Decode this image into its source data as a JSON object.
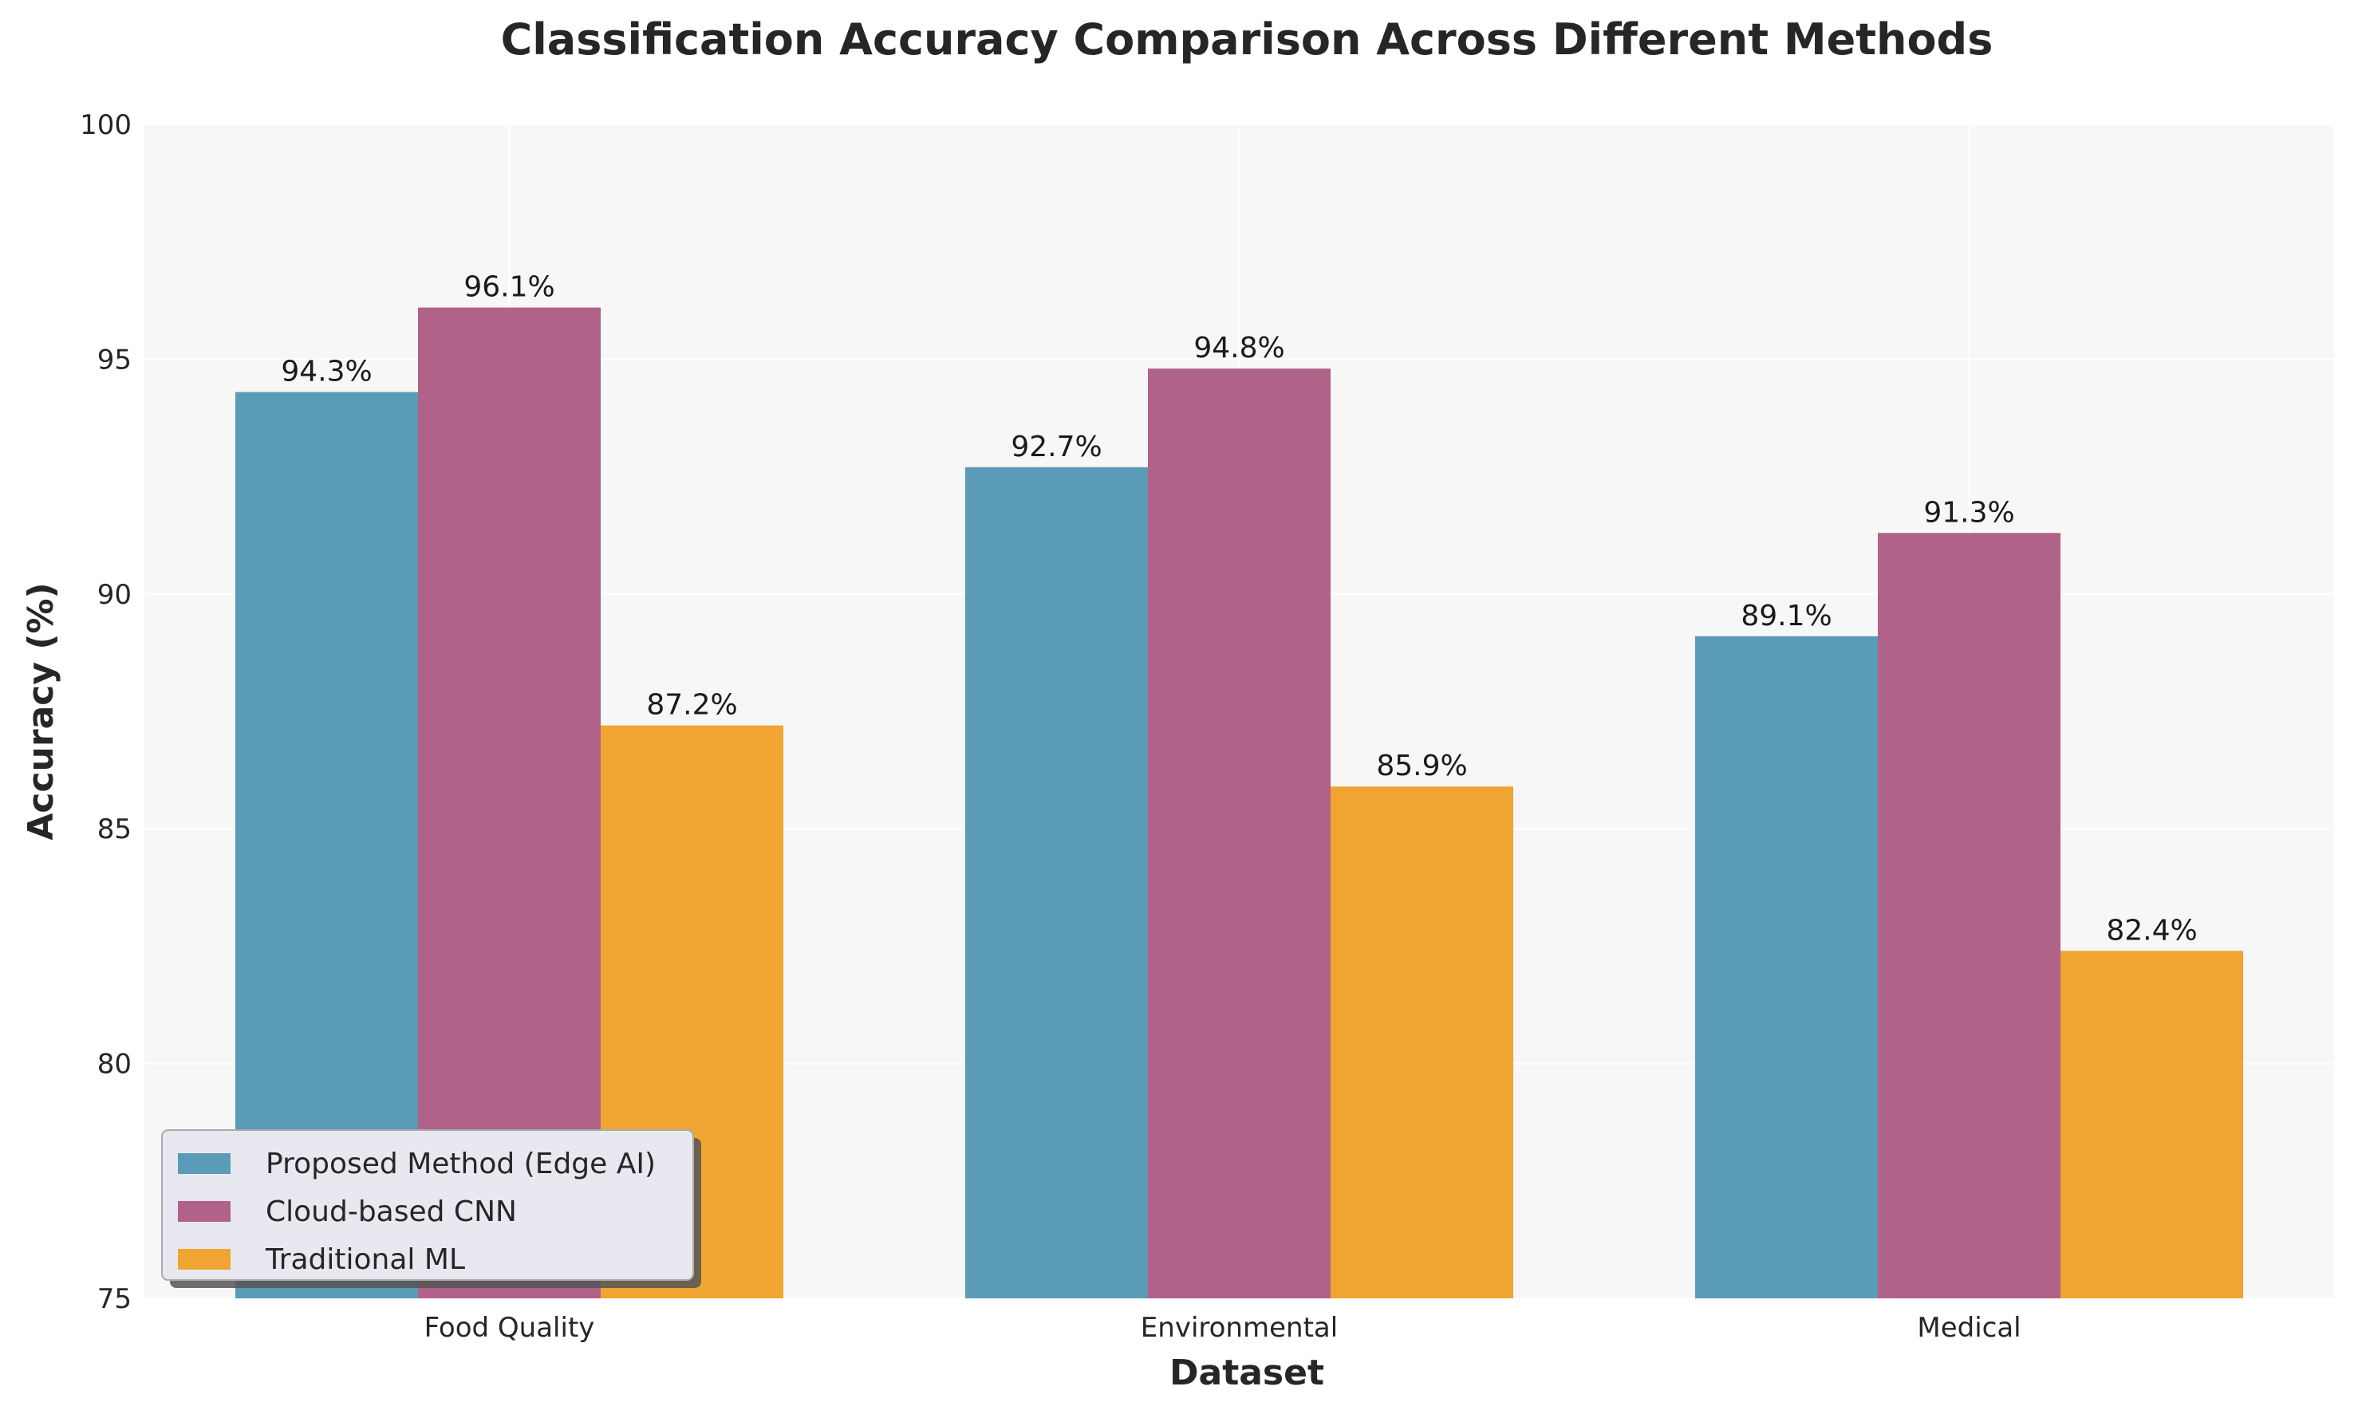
{
  "chart_data": {
    "type": "bar",
    "title": "Classification Accuracy Comparison Across Different Methods",
    "xlabel": "Dataset",
    "ylabel": "Accuracy (%)",
    "categories": [
      "Food Quality",
      "Environmental",
      "Medical"
    ],
    "series": [
      {
        "name": "Proposed Method (Edge AI)",
        "color": "#5a9bb8",
        "values": [
          94.3,
          92.7,
          89.1
        ]
      },
      {
        "name": "Cloud-based CNN",
        "color": "#b06289",
        "values": [
          96.1,
          94.8,
          91.3
        ]
      },
      {
        "name": "Traditional ML",
        "color": "#f0a432",
        "values": [
          87.2,
          85.9,
          82.4
        ]
      }
    ],
    "data_labels": [
      [
        "94.3%",
        "92.7%",
        "89.1%"
      ],
      [
        "96.1%",
        "94.8%",
        "91.3%"
      ],
      [
        "87.2%",
        "85.9%",
        "82.4%"
      ]
    ],
    "ylim": [
      75,
      100
    ],
    "yticks": [
      75,
      80,
      85,
      90,
      95,
      100
    ],
    "grid": true,
    "legend_position": "lower-left",
    "background_color": "#f7f7f7"
  }
}
